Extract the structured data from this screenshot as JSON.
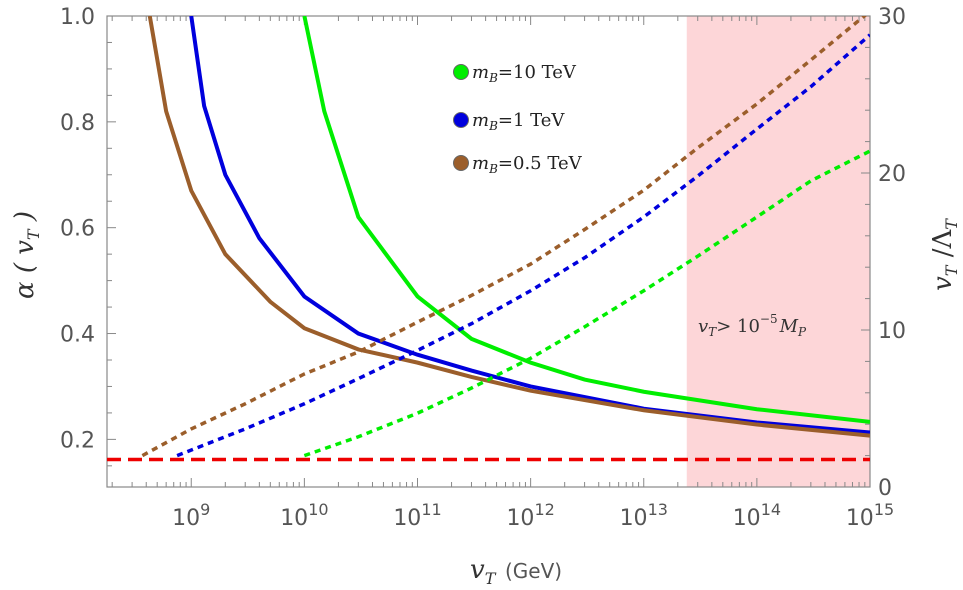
{
  "chart_data": {
    "type": "line",
    "x_axis": {
      "scale": "log",
      "range": [
        180000000.0,
        1000000000000000.0
      ],
      "ticks": [
        1000000000.0,
        10000000000.0,
        100000000000.0,
        1000000000000.0,
        10000000000000.0,
        100000000000000.0,
        1000000000000000.0
      ],
      "tick_labels": [
        {
          "base": "10",
          "exp": "9"
        },
        {
          "base": "10",
          "exp": "10"
        },
        {
          "base": "10",
          "exp": "11"
        },
        {
          "base": "10",
          "exp": "12"
        },
        {
          "base": "10",
          "exp": "13"
        },
        {
          "base": "10",
          "exp": "14"
        },
        {
          "base": "10",
          "exp": "15"
        }
      ],
      "label": {
        "var": "v",
        "sub": "T",
        "unit": "(GeV)"
      }
    },
    "y_left": {
      "range": [
        0.11,
        1.0
      ],
      "ticks": [
        0.2,
        0.4,
        0.6,
        0.8,
        1.0
      ],
      "tick_labels": [
        "0.2",
        "0.4",
        "0.6",
        "0.8",
        "1.0"
      ],
      "label": {
        "text": "α ( v",
        "sub": "T",
        "close": " )"
      }
    },
    "y_right": {
      "range": [
        0,
        30
      ],
      "ticks": [
        0,
        10,
        20,
        30
      ],
      "tick_labels": [
        "0",
        "10",
        "20",
        "30"
      ],
      "label": {
        "var": "v",
        "sub": "T",
        "mid": " /Λ",
        "sub2": "T"
      }
    },
    "series": [
      {
        "name": "m_B=10 TeV",
        "legend_var": "m",
        "legend_sub": "B",
        "legend_val": "=10 TeV",
        "color": "#00ee00",
        "axis": "left",
        "style": "solid",
        "points": [
          [
            10000000000.0,
            1.0
          ],
          [
            15000000000.0,
            0.82
          ],
          [
            30000000000.0,
            0.62
          ],
          [
            100000000000.0,
            0.47
          ],
          [
            300000000000.0,
            0.39
          ],
          [
            1000000000000.0,
            0.345
          ],
          [
            3000000000000.0,
            0.313
          ],
          [
            10000000000000.0,
            0.29
          ],
          [
            100000000000000.0,
            0.257
          ],
          [
            1000000000000000.0,
            0.233
          ]
        ]
      },
      {
        "name": "m_B=1 TeV",
        "legend_var": "m",
        "legend_sub": "B",
        "legend_val": "=1 TeV",
        "color": "#0000dd",
        "axis": "left",
        "style": "solid",
        "points": [
          [
            1000000000.0,
            1.0
          ],
          [
            1300000000.0,
            0.83
          ],
          [
            2000000000.0,
            0.7
          ],
          [
            4000000000.0,
            0.58
          ],
          [
            10000000000.0,
            0.47
          ],
          [
            30000000000.0,
            0.4
          ],
          [
            100000000000.0,
            0.36
          ],
          [
            300000000000.0,
            0.33
          ],
          [
            1000000000000.0,
            0.3
          ],
          [
            10000000000000.0,
            0.258
          ],
          [
            100000000000000.0,
            0.232
          ],
          [
            1000000000000000.0,
            0.213
          ]
        ]
      },
      {
        "name": "m_B=0.5 TeV",
        "legend_var": "m",
        "legend_sub": "B",
        "legend_val": "=0.5 TeV",
        "color": "#9b5e2b",
        "axis": "left",
        "style": "solid",
        "points": [
          [
            430000000.0,
            1.0
          ],
          [
            600000000.0,
            0.82
          ],
          [
            1000000000.0,
            0.67
          ],
          [
            2000000000.0,
            0.55
          ],
          [
            5000000000.0,
            0.46
          ],
          [
            10000000000.0,
            0.41
          ],
          [
            30000000000.0,
            0.37
          ],
          [
            100000000000.0,
            0.345
          ],
          [
            300000000000.0,
            0.318
          ],
          [
            1000000000000.0,
            0.292
          ],
          [
            10000000000000.0,
            0.255
          ],
          [
            100000000000000.0,
            0.228
          ],
          [
            1000000000000000.0,
            0.207
          ]
        ]
      },
      {
        "color": "#00ee00",
        "axis": "right",
        "style": "dotted",
        "points": [
          [
            10000000000.0,
            2.0
          ],
          [
            30000000000.0,
            3.2
          ],
          [
            100000000000.0,
            4.7
          ],
          [
            300000000000.0,
            6.3
          ],
          [
            1000000000000.0,
            8.2
          ],
          [
            3000000000000.0,
            10.2
          ],
          [
            10000000000000.0,
            12.5
          ],
          [
            30000000000000.0,
            14.7
          ],
          [
            100000000000000.0,
            17.2
          ],
          [
            300000000000000.0,
            19.5
          ],
          [
            1000000000000000.0,
            21.4
          ]
        ]
      },
      {
        "color": "#0000dd",
        "axis": "right",
        "style": "dotted",
        "points": [
          [
            750000000.0,
            2.0
          ],
          [
            3000000000.0,
            3.7
          ],
          [
            10000000000.0,
            5.3
          ],
          [
            30000000000.0,
            6.9
          ],
          [
            100000000000.0,
            8.7
          ],
          [
            300000000000.0,
            10.4
          ],
          [
            1000000000000.0,
            12.5
          ],
          [
            3000000000000.0,
            14.6
          ],
          [
            10000000000000.0,
            17.2
          ],
          [
            30000000000000.0,
            19.8
          ],
          [
            100000000000000.0,
            22.8
          ],
          [
            300000000000000.0,
            25.5
          ],
          [
            1000000000000000.0,
            28.8
          ]
        ]
      },
      {
        "color": "#9b5e2b",
        "axis": "right",
        "style": "dotted",
        "points": [
          [
            370000000.0,
            2.0
          ],
          [
            1000000000.0,
            3.7
          ],
          [
            3000000000.0,
            5.3
          ],
          [
            10000000000.0,
            7.2
          ],
          [
            30000000000.0,
            8.6
          ],
          [
            100000000000.0,
            10.5
          ],
          [
            300000000000.0,
            12.2
          ],
          [
            1000000000000.0,
            14.2
          ],
          [
            3000000000000.0,
            16.4
          ],
          [
            10000000000000.0,
            18.9
          ],
          [
            30000000000000.0,
            21.6
          ],
          [
            100000000000000.0,
            24.4
          ],
          [
            300000000000000.0,
            27.2
          ],
          [
            1000000000000000.0,
            30.3
          ]
        ]
      }
    ],
    "reference_line": {
      "y": 0.162,
      "axis": "left",
      "color": "#ee0000",
      "style": "dashed"
    },
    "shaded_region": {
      "x_start": 24000000000000.0,
      "x_end": 1000000000000000.0,
      "color": "#fdd6d8"
    },
    "annotation": {
      "var": "v",
      "sub": "T",
      "gt": "> 10",
      "exp": "−5",
      "M": "M",
      "Msub": "P"
    },
    "legend_placement": "top-center",
    "grid": false
  }
}
